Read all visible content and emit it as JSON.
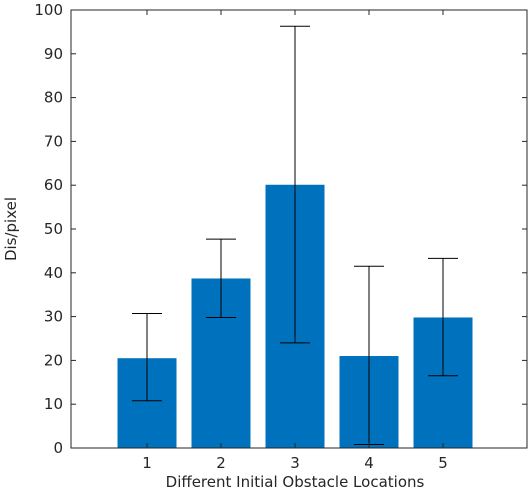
{
  "chart_data": {
    "type": "bar",
    "title": "",
    "xlabel": "Different Initial Obstacle Locations",
    "ylabel": "Dis/pixel",
    "categories": [
      "1",
      "2",
      "3",
      "4",
      "5"
    ],
    "values": [
      20.5,
      38.7,
      60.1,
      21.0,
      29.8
    ],
    "error_low": [
      10.8,
      29.8,
      24.0,
      0.8,
      16.5
    ],
    "error_high": [
      30.7,
      47.7,
      96.3,
      41.5,
      43.3
    ],
    "ylim": [
      0,
      100
    ],
    "yticks": [
      0,
      10,
      20,
      30,
      40,
      50,
      60,
      70,
      80,
      90,
      100
    ],
    "bar_color": "#0072BD",
    "grid": false,
    "legend": "none"
  }
}
